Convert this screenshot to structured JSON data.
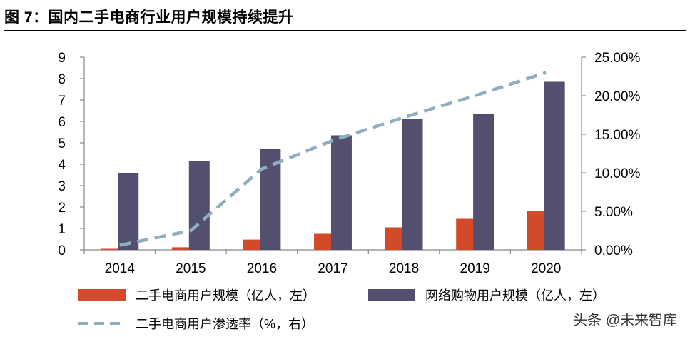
{
  "header": {
    "title": "图 7：国内二手电商行业用户规模持续提升"
  },
  "watermark": "头条 @未来智库",
  "colors": {
    "used_users": "#D24A2A",
    "online_users": "#52506E",
    "penetration": "#8FAFBE"
  },
  "chart_data": {
    "type": "bar",
    "categories": [
      "2014",
      "2015",
      "2016",
      "2017",
      "2018",
      "2019",
      "2020"
    ],
    "series": [
      {
        "name": "二手电商用户规模（亿人，左）",
        "kind": "bar",
        "axis": "left",
        "values": [
          0.05,
          0.12,
          0.48,
          0.75,
          1.05,
          1.45,
          1.8
        ]
      },
      {
        "name": "网络购物用户规模（亿人，左）",
        "kind": "bar",
        "axis": "left",
        "values": [
          3.6,
          4.15,
          4.7,
          5.35,
          6.1,
          6.35,
          7.85
        ]
      },
      {
        "name": "二手电商用户渗透率（%，右）",
        "kind": "line",
        "axis": "right",
        "style": "dashed",
        "values": [
          0.006,
          0.025,
          0.105,
          0.142,
          0.172,
          0.2,
          0.23
        ]
      }
    ],
    "y_left": {
      "min": 0,
      "max": 9,
      "ticks": [
        "0",
        "1",
        "2",
        "3",
        "4",
        "5",
        "6",
        "7",
        "8",
        "9"
      ]
    },
    "y_right": {
      "min": 0,
      "max": 0.25,
      "ticks": [
        "0.00%",
        "5.00%",
        "10.00%",
        "15.00%",
        "20.00%",
        "25.00%"
      ]
    },
    "grid": false,
    "legend_position": "bottom"
  }
}
